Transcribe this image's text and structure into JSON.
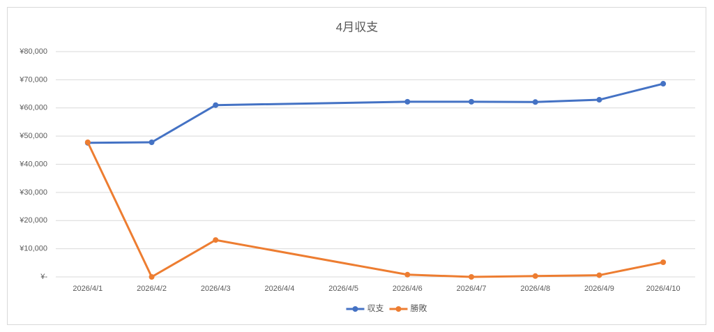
{
  "chart_data": {
    "type": "line",
    "title": "4月収支",
    "categories": [
      "2026/4/1",
      "2026/4/2",
      "2026/4/3",
      "2026/4/4",
      "2026/4/5",
      "2026/4/6",
      "2026/4/7",
      "2026/4/8",
      "2026/4/9",
      "2026/4/10"
    ],
    "series": [
      {
        "name": "収支",
        "color": "#4472c4",
        "values": [
          47600,
          47800,
          61000,
          null,
          null,
          62200,
          62200,
          62100,
          62900,
          68600
        ]
      },
      {
        "name": "勝敗",
        "color": "#ed7d31",
        "values": [
          47800,
          0,
          13100,
          null,
          null,
          800,
          0,
          300,
          600,
          5200
        ]
      }
    ],
    "connect_gaps": true,
    "ylim": [
      0,
      80000
    ],
    "yticks": [
      {
        "value": 0,
        "label": "¥-"
      },
      {
        "value": 10000,
        "label": "¥10,000"
      },
      {
        "value": 20000,
        "label": "¥20,000"
      },
      {
        "value": 30000,
        "label": "¥30,000"
      },
      {
        "value": 40000,
        "label": "¥40,000"
      },
      {
        "value": 50000,
        "label": "¥50,000"
      },
      {
        "value": 60000,
        "label": "¥60,000"
      },
      {
        "value": 70000,
        "label": "¥70,000"
      },
      {
        "value": 80000,
        "label": "¥80,000"
      }
    ],
    "grid": true,
    "legend": "bottom"
  }
}
